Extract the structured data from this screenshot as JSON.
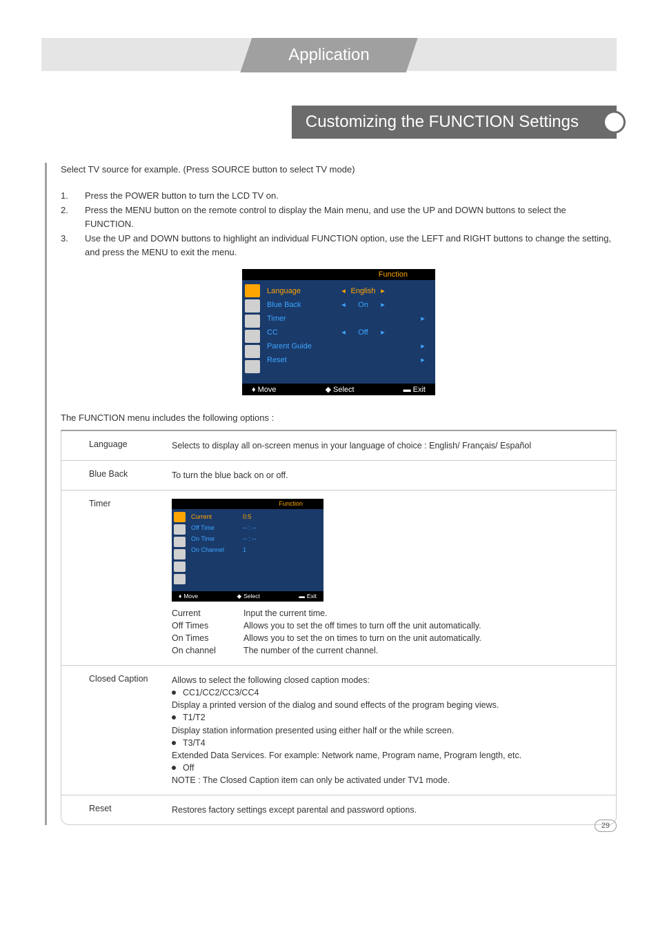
{
  "header": {
    "breadcrumb": "Application"
  },
  "section_title": "Customizing the FUNCTION Settings",
  "intro": "Select TV source for example. (Press SOURCE button to select TV mode)",
  "steps": [
    "Press the POWER button to turn the LCD TV on.",
    "Press the MENU button on the remote control to display the Main menu, and use the UP and DOWN buttons to select the FUNCTION.",
    "Use the UP and DOWN buttons to highlight an individual FUNCTION option, use the LEFT and RIGHT buttons to change the setting, and press the MENU to exit the menu."
  ],
  "osd_main": {
    "title": "Function",
    "colors": {
      "bg": "#1a3a6a",
      "title_bg": "#000000",
      "title_fg": "#ffa500",
      "row_fg": "#3da5ff",
      "highlight_fg": "#ffa500",
      "footer_bg": "#000000",
      "icon_inactive": "#d0d0d0",
      "icon_active": "#ffa500"
    },
    "rows": [
      {
        "label": "Language",
        "value": "English",
        "arrows": "both",
        "highlight": true
      },
      {
        "label": "Blue Back",
        "value": "On",
        "arrows": "both",
        "highlight": false
      },
      {
        "label": "Timer",
        "value": "",
        "arrows": "right",
        "highlight": false
      },
      {
        "label": "CC",
        "value": "Off",
        "arrows": "both",
        "highlight": false
      },
      {
        "label": "Parent Guide",
        "value": "",
        "arrows": "right",
        "highlight": false
      },
      {
        "label": "Reset",
        "value": "",
        "arrows": "right",
        "highlight": false
      }
    ],
    "footer": {
      "move": "Move",
      "select": "Select",
      "exit": "Exit"
    }
  },
  "menu_intro": "The FUNCTION menu includes the following options :",
  "options": {
    "language": {
      "label": "Language",
      "desc": "Selects to display all on-screen menus in your language of choice : English/ Français/ Español"
    },
    "blueback": {
      "label": "Blue Back",
      "desc": "To turn the blue back on or off."
    },
    "timer": {
      "label": "Timer",
      "osd": {
        "title": "Function",
        "rows": [
          {
            "label": "Current",
            "value": "0:5",
            "highlight": true
          },
          {
            "label": "Off Time",
            "value": "-- : --",
            "highlight": false
          },
          {
            "label": "On Time",
            "value": "-- : --",
            "highlight": false
          },
          {
            "label": "On Channel",
            "value": "1",
            "highlight": false
          }
        ],
        "footer": {
          "move": "Move",
          "select": "Select",
          "exit": "Exit"
        }
      },
      "defs": {
        "k1": "Current",
        "v1": "Input the current time.",
        "k2": "Off Times",
        "v2": "Allows you to set the off times to turn off the unit automatically.",
        "k3": "On Times",
        "v3": "Allows you to set the on times to turn on the unit automatically.",
        "k4": "On channel",
        "v4": "The number of the current channel."
      }
    },
    "cc": {
      "label": "Closed Caption",
      "intro": "Allows to select the following closed caption modes:",
      "b1": "CC1/CC2/CC3/CC4",
      "l1": "Display a printed version of the dialog and sound effects of the program beging views.",
      "b2": "T1/T2",
      "l2": "Display station information presented using either half or the while screen.",
      "b3": "T3/T4",
      "l3": "Extended Data Services. For example: Network name, Program name, Program length, etc.",
      "b4": "Off",
      "note": "NOTE : The Closed Caption item can only be activated under TV1 mode."
    },
    "reset": {
      "label": "Reset",
      "desc": "Restores factory settings except parental and password options."
    }
  },
  "page_number": "29"
}
